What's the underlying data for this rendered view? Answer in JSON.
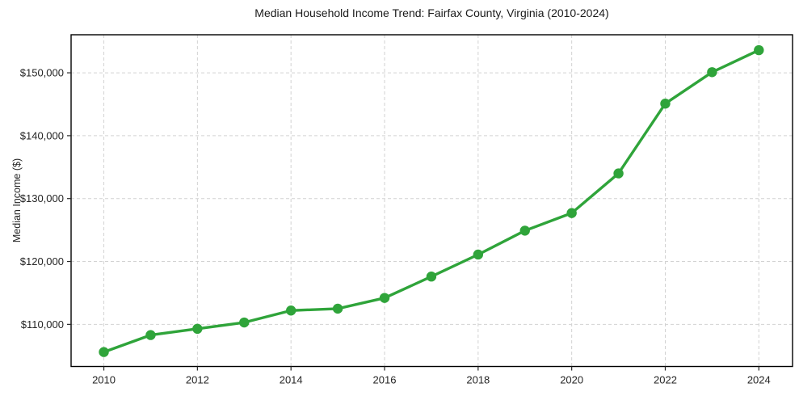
{
  "chart_data": {
    "type": "line",
    "title": "Median Household Income Trend: Fairfax County, Virginia (2010-2024)",
    "xlabel": "",
    "ylabel": "Median Income ($)",
    "x": [
      2010,
      2011,
      2012,
      2013,
      2014,
      2015,
      2016,
      2017,
      2018,
      2019,
      2020,
      2021,
      2022,
      2023,
      2024
    ],
    "series": [
      {
        "name": "Median Household Income",
        "values": [
          105600,
          108300,
          109300,
          110300,
          112200,
          112500,
          114200,
          117600,
          121100,
          124900,
          127700,
          134000,
          145100,
          150100,
          153600
        ]
      }
    ],
    "xlim": [
      2009.3,
      2024.72
    ],
    "ylim": [
      103300,
      156050
    ],
    "xticks": [
      2010,
      2012,
      2014,
      2016,
      2018,
      2020,
      2022,
      2024
    ],
    "xtick_labels": [
      "2010",
      "2012",
      "2014",
      "2016",
      "2018",
      "2020",
      "2022",
      "2024"
    ],
    "yticks": [
      110000,
      120000,
      130000,
      140000,
      150000
    ],
    "ytick_labels": [
      "$110,000",
      "$120,000",
      "$130,000",
      "$140,000",
      "$150,000"
    ],
    "grid": true,
    "grid_style": "dashed",
    "legend": "none",
    "marker": "circle",
    "colors": {
      "line": "#2fa43a",
      "marker": "#2fa43a",
      "grid": "#d2d2d2",
      "spine": "#000000",
      "tick_text": "#262626",
      "title_text": "#1a1a1a",
      "background": "#ffffff"
    }
  }
}
